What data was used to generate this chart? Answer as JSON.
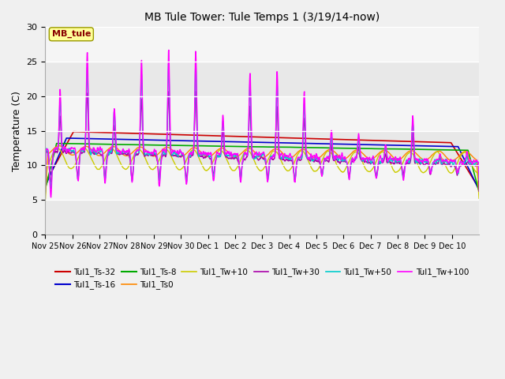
{
  "title": "MB Tule Tower: Tule Temps 1 (3/19/14-now)",
  "ylabel": "Temperature (C)",
  "ylim": [
    0,
    30
  ],
  "yticks": [
    0,
    5,
    10,
    15,
    20,
    25,
    30
  ],
  "bg_color": "#f0f0f0",
  "series": {
    "Tul1_Ts-32": {
      "color": "#cc0000",
      "lw": 1.2
    },
    "Tul1_Ts-16": {
      "color": "#0000cc",
      "lw": 1.2
    },
    "Tul1_Ts-8": {
      "color": "#00aa00",
      "lw": 1.2
    },
    "Tul1_Ts0": {
      "color": "#ff8800",
      "lw": 1.0
    },
    "Tul1_Tw+10": {
      "color": "#cccc00",
      "lw": 1.0
    },
    "Tul1_Tw+30": {
      "color": "#aa00aa",
      "lw": 1.0
    },
    "Tul1_Tw+50": {
      "color": "#00cccc",
      "lw": 1.0
    },
    "Tul1_Tw+100": {
      "color": "#ff00ff",
      "lw": 1.0
    }
  },
  "legend_box": {
    "label": "MB_tule",
    "bg": "#ffff99",
    "edge": "#999900",
    "text_color": "#880000"
  },
  "x_tick_labels": [
    "Nov 25",
    "Nov 26",
    "Nov 27",
    "Nov 28",
    "Nov 29",
    "Nov 30",
    "Dec 1",
    "Dec 2",
    "Dec 3",
    "Dec 4",
    "Dec 5",
    "Dec 6",
    "Dec 7",
    "Dec 8",
    "Dec 9",
    "Dec 10"
  ]
}
